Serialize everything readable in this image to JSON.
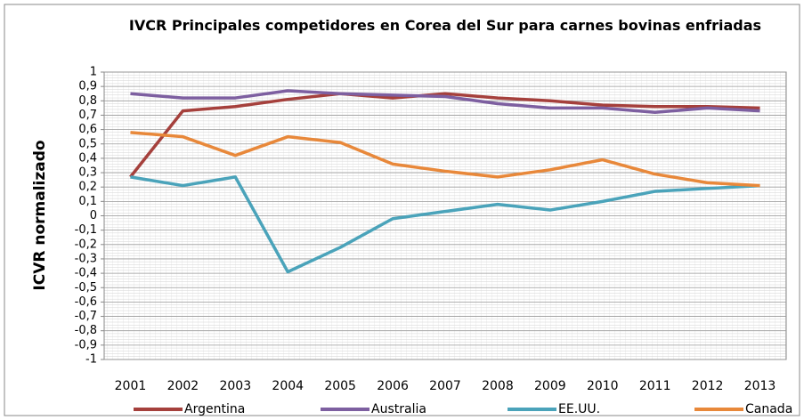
{
  "chart_data": {
    "type": "line",
    "title": "IVCR  Principales competidores en Corea del Sur para carnes bovinas enfriadas",
    "y_label": "ICVR normalizado",
    "categories": [
      "2001",
      "2002",
      "2003",
      "2004",
      "2005",
      "2006",
      "2007",
      "2008",
      "2009",
      "2010",
      "2011",
      "2012",
      "2013"
    ],
    "series": [
      {
        "name": "Argentina",
        "color": "#a5403c",
        "values": [
          0.27,
          0.73,
          0.76,
          0.81,
          0.85,
          0.82,
          0.85,
          0.82,
          0.8,
          0.77,
          0.76,
          0.76,
          0.75
        ]
      },
      {
        "name": "Australia",
        "color": "#7d5fa0",
        "values": [
          0.85,
          0.82,
          0.82,
          0.87,
          0.85,
          0.84,
          0.83,
          0.78,
          0.75,
          0.75,
          0.72,
          0.75,
          0.73
        ]
      },
      {
        "name": "EE.UU.",
        "color": "#4aa3ba",
        "values": [
          0.27,
          0.21,
          0.27,
          -0.39,
          -0.22,
          -0.02,
          0.03,
          0.08,
          0.04,
          0.1,
          0.17,
          0.19,
          0.21
        ]
      },
      {
        "name": "Canada",
        "color": "#e8883a",
        "values": [
          0.58,
          0.55,
          0.42,
          0.55,
          0.51,
          0.36,
          0.31,
          0.27,
          0.32,
          0.39,
          0.29,
          0.23,
          0.21
        ]
      }
    ],
    "ylim": [
      -1,
      1
    ],
    "yticks": [
      1,
      {
        "value": 0.9,
        "label": "0,9"
      },
      {
        "value": 0.8,
        "label": "0,8"
      },
      {
        "value": 0.7,
        "label": "0,7"
      },
      {
        "value": 0.6,
        "label": "0,6"
      },
      {
        "value": 0.5,
        "label": "0,5"
      },
      {
        "value": 0.4,
        "label": "0,4"
      },
      {
        "value": 0.3,
        "label": "0,3"
      },
      {
        "value": 0.2,
        "label": "0,2"
      },
      {
        "value": 0.1,
        "label": "0,1"
      },
      0,
      {
        "value": -0.1,
        "label": "-0,1"
      },
      {
        "value": -0.2,
        "label": "-0,2"
      },
      {
        "value": -0.3,
        "label": "-0,3"
      },
      {
        "value": -0.4,
        "label": "-0,4"
      },
      {
        "value": -0.5,
        "label": "-0,5"
      },
      {
        "value": -0.6,
        "label": "-0,6"
      },
      {
        "value": -0.7,
        "label": "-0,7"
      },
      {
        "value": -0.8,
        "label": "-0,8"
      },
      {
        "value": -0.9,
        "label": "-0,9"
      },
      -1
    ],
    "grid": true,
    "legend": "bottom"
  }
}
